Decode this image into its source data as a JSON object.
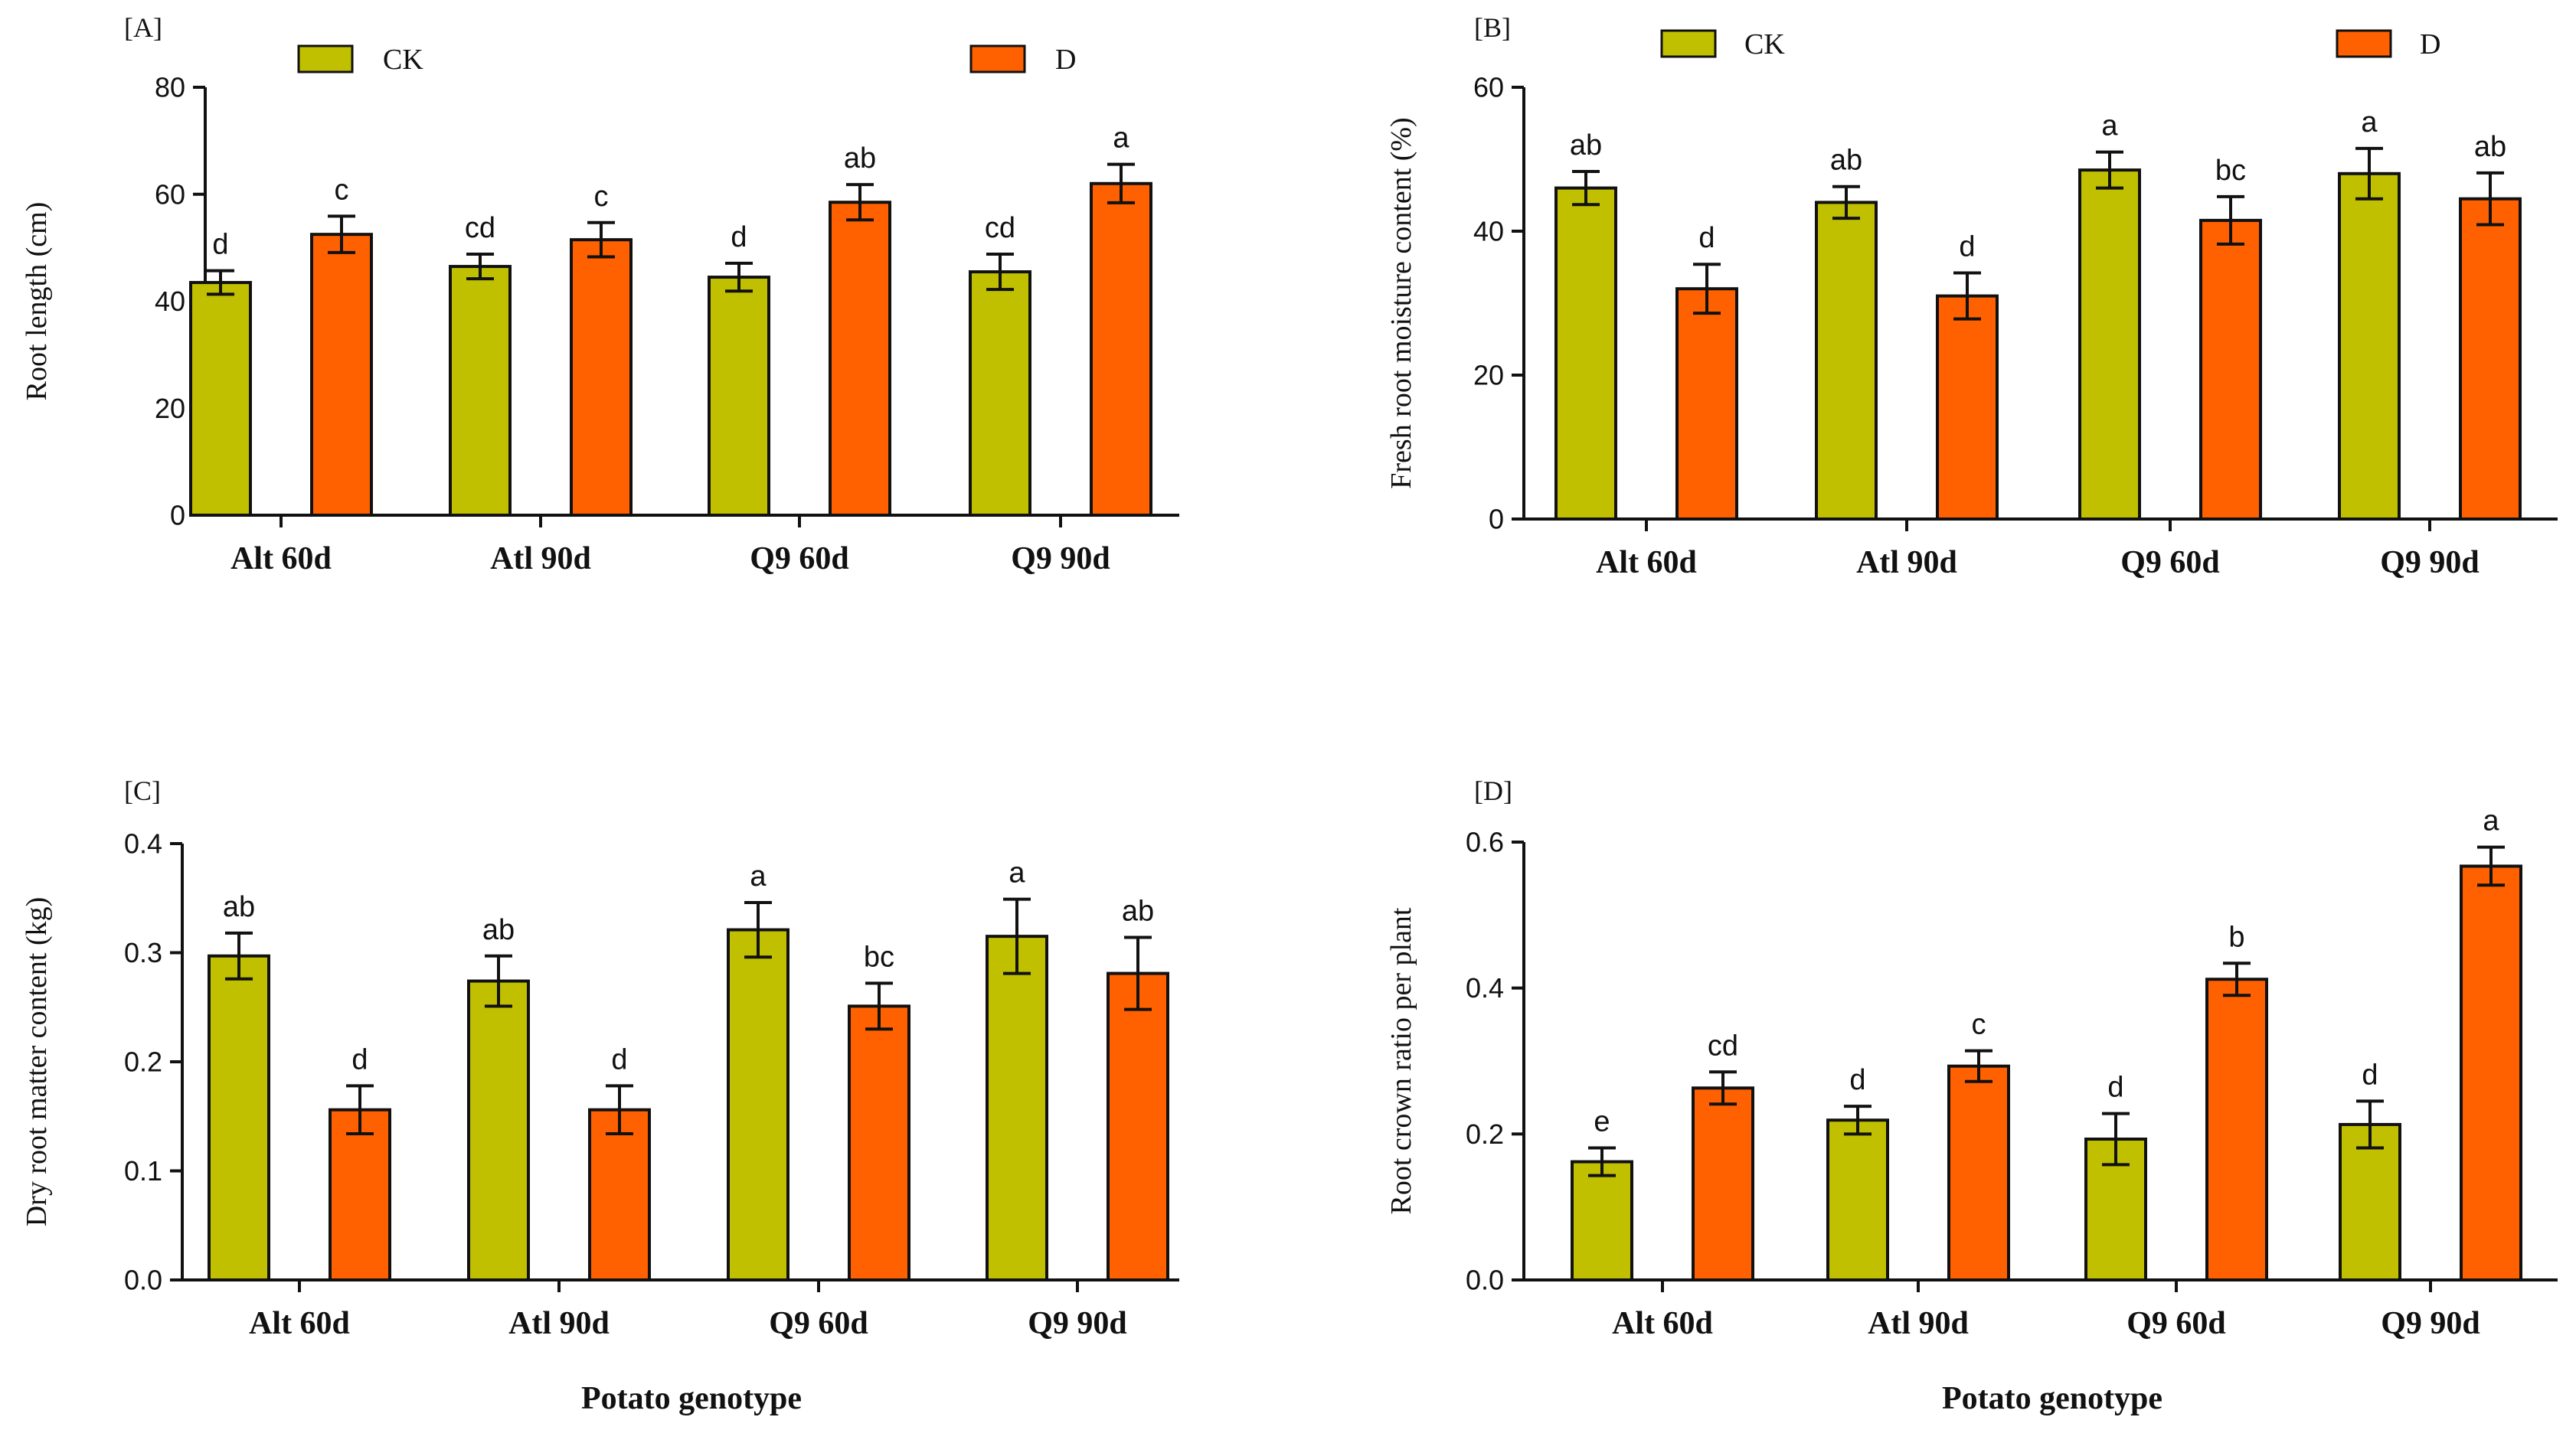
{
  "colors": {
    "CK": "#c0c000",
    "D": "#ff6000",
    "axis": "#111111"
  },
  "x_axis_title": "Potato genotype",
  "chart_data": [
    {
      "type": "bar",
      "panel": "[A]",
      "ylabel": "Root length (cm)",
      "ylim": [
        0,
        80
      ],
      "yticks": [
        0,
        20,
        40,
        60,
        80
      ],
      "categories": [
        "Alt 60d",
        "Atl 90d",
        "Q9 60d",
        "Q9 90d"
      ],
      "legend": "top",
      "series": [
        {
          "name": "CK",
          "values": [
            43.5,
            46.5,
            44.5,
            45.5
          ],
          "errors": [
            2.2,
            2.3,
            2.6,
            3.3
          ],
          "sig": [
            "d",
            "cd",
            "d",
            "cd"
          ]
        },
        {
          "name": "D",
          "values": [
            52.5,
            51.5,
            58.5,
            62.0
          ],
          "errors": [
            3.4,
            3.2,
            3.3,
            3.6
          ],
          "sig": [
            "c",
            "c",
            "ab",
            "a"
          ]
        }
      ]
    },
    {
      "type": "bar",
      "panel": "[B]",
      "ylabel": "Fresh root moisture content (%)",
      "ylim": [
        0,
        60
      ],
      "yticks": [
        0,
        20,
        40,
        60
      ],
      "categories": [
        "Alt 60d",
        "Atl 90d",
        "Q9 60d",
        "Q9 90d"
      ],
      "legend": "top",
      "series": [
        {
          "name": "CK",
          "values": [
            46.0,
            44.0,
            48.5,
            48.0
          ],
          "errors": [
            2.3,
            2.2,
            2.5,
            3.5
          ],
          "sig": [
            "ab",
            "ab",
            "a",
            "a"
          ]
        },
        {
          "name": "D",
          "values": [
            32.0,
            31.0,
            41.5,
            44.5
          ],
          "errors": [
            3.4,
            3.2,
            3.3,
            3.6
          ],
          "sig": [
            "d",
            "d",
            "bc",
            "ab"
          ]
        }
      ]
    },
    {
      "type": "bar",
      "panel": "[C]",
      "ylabel": "Dry root matter content (kg)",
      "ylim": [
        0,
        0.4
      ],
      "yticks": [
        0.0,
        0.1,
        0.2,
        0.3,
        0.4
      ],
      "tick_decimals": 1,
      "categories": [
        "Alt 60d",
        "Atl 90d",
        "Q9 60d",
        "Q9 90d"
      ],
      "series": [
        {
          "name": "CK",
          "values": [
            0.297,
            0.274,
            0.321,
            0.315
          ],
          "errors": [
            0.021,
            0.023,
            0.025,
            0.034
          ],
          "sig": [
            "ab",
            "ab",
            "a",
            "a"
          ]
        },
        {
          "name": "D",
          "values": [
            0.156,
            0.156,
            0.251,
            0.281
          ],
          "errors": [
            0.022,
            0.022,
            0.021,
            0.033
          ],
          "sig": [
            "d",
            "d",
            "bc",
            "ab"
          ]
        }
      ]
    },
    {
      "type": "bar",
      "panel": "[D]",
      "ylabel": "Root crown ratio per plant",
      "ylim": [
        0,
        0.6
      ],
      "yticks": [
        0.0,
        0.2,
        0.4,
        0.6
      ],
      "tick_decimals": 1,
      "categories": [
        "Alt 60d",
        "Atl 90d",
        "Q9 60d",
        "Q9 90d"
      ],
      "series": [
        {
          "name": "CK",
          "values": [
            0.162,
            0.219,
            0.193,
            0.213
          ],
          "errors": [
            0.019,
            0.019,
            0.035,
            0.032
          ],
          "sig": [
            "e",
            "d",
            "d",
            "d"
          ]
        },
        {
          "name": "D",
          "values": [
            0.263,
            0.293,
            0.412,
            0.567
          ],
          "errors": [
            0.022,
            0.021,
            0.022,
            0.026
          ],
          "sig": [
            "cd",
            "c",
            "b",
            "a"
          ]
        }
      ]
    }
  ]
}
